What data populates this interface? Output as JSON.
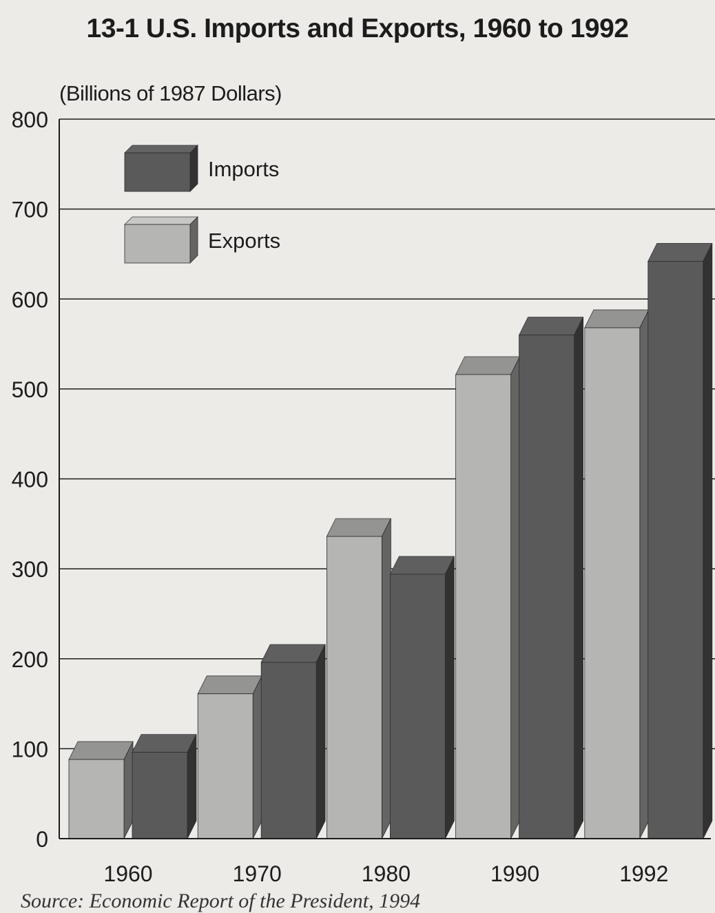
{
  "source": "Source: Economic Report of the President, 1994",
  "chart_data": {
    "type": "bar",
    "title": "13-1 U.S. Imports and Exports, 1960 to 1992",
    "ylabel": "(Billions of 1987 Dollars)",
    "xlabel": "",
    "categories": [
      "1960",
      "1970",
      "1980",
      "1990",
      "1992"
    ],
    "series": [
      {
        "name": "Exports",
        "color": "#b5b5b3",
        "values": [
          88,
          161,
          336,
          516,
          568
        ]
      },
      {
        "name": "Imports",
        "color": "#5a5a5a",
        "values": [
          96,
          196,
          294,
          560,
          642
        ]
      }
    ],
    "ylim": [
      0,
      800
    ],
    "yticks": [
      "0",
      "100",
      "200",
      "300",
      "400",
      "500",
      "600",
      "700",
      "800"
    ],
    "legend": {
      "position": "top-left",
      "items": [
        "Imports",
        "Exports"
      ]
    },
    "grid": true,
    "style": "3d-bars"
  }
}
